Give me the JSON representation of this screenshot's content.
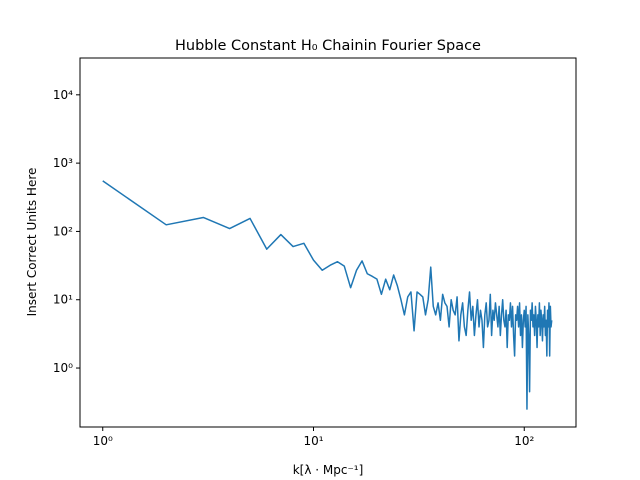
{
  "chart_data": {
    "type": "line",
    "title": "Hubble Constant H₀ Chainin Fourier Space",
    "xlabel": "k[λ · Mpc⁻¹]",
    "ylabel": "Insert Correct Units Here",
    "xscale": "log",
    "yscale": "log",
    "xlim": [
      0.78,
      176
    ],
    "ylim": [
      0.137,
      34600
    ],
    "xticks": [
      {
        "value": 1,
        "label": "10⁰"
      },
      {
        "value": 10,
        "label": "10¹"
      },
      {
        "value": 100,
        "label": "10²"
      }
    ],
    "yticks": [
      {
        "value": 1,
        "label": "10⁰"
      },
      {
        "value": 10,
        "label": "10¹"
      },
      {
        "value": 100,
        "label": "10²"
      },
      {
        "value": 1000,
        "label": "10³"
      },
      {
        "value": 10000,
        "label": "10⁴"
      }
    ],
    "x": [
      1,
      2,
      3,
      4,
      5,
      6,
      7,
      8,
      9,
      10,
      11,
      12,
      13,
      14,
      15,
      16,
      17,
      18,
      19,
      20,
      21,
      22,
      23,
      24,
      25,
      26,
      27,
      28,
      29,
      30,
      31,
      32,
      33,
      34,
      35,
      36,
      37,
      38,
      39,
      40,
      41,
      42,
      43,
      44,
      45,
      46,
      47,
      48,
      49,
      50,
      51,
      52,
      53,
      54,
      55,
      56,
      57,
      58,
      59,
      60,
      61,
      62,
      63,
      64,
      65,
      66,
      67,
      68,
      69,
      70,
      71,
      72,
      73,
      74,
      75,
      76,
      77,
      78,
      79,
      80,
      81,
      82,
      83,
      84,
      85,
      86,
      87,
      88,
      89,
      90,
      91,
      92,
      93,
      94,
      95,
      96,
      97,
      98,
      99,
      100,
      101,
      102,
      103,
      104,
      105,
      106,
      107,
      108,
      109,
      110,
      111,
      112,
      113,
      114,
      115,
      116,
      117,
      118,
      119,
      120,
      121,
      122,
      123,
      124,
      125,
      126,
      127,
      128,
      129,
      130,
      131,
      132,
      133,
      134,
      135
    ],
    "series": [
      {
        "color": "#1f77b4",
        "values": [
          550,
          125,
          160,
          110,
          155,
          55,
          90,
          60,
          67,
          38,
          27,
          32,
          36,
          31,
          15,
          27,
          37,
          24,
          22,
          20,
          12,
          20,
          14,
          23,
          16,
          10,
          6,
          11,
          13,
          3.5,
          13,
          12,
          11,
          6,
          10,
          30,
          8,
          6,
          9,
          5,
          12,
          9,
          8,
          4,
          10,
          7,
          6,
          11,
          2.5,
          6,
          9,
          4,
          3,
          7,
          13,
          5,
          8,
          3,
          6,
          10,
          4,
          7,
          5,
          2,
          6,
          9,
          4,
          5,
          12,
          3,
          7,
          5,
          9,
          6,
          4,
          8,
          3,
          6,
          10,
          5,
          4,
          7,
          2,
          6,
          5,
          9,
          4,
          8,
          3,
          1.5,
          6,
          5,
          8,
          4,
          9,
          3,
          6,
          2,
          5,
          7,
          4,
          8,
          0.25,
          6,
          3,
          0.45,
          7,
          5,
          9,
          4,
          6,
          3,
          8,
          5,
          2,
          6,
          4,
          9,
          3,
          7,
          5,
          2.5,
          6,
          4,
          8,
          3,
          5,
          1.5,
          7,
          4,
          9,
          1.5,
          8,
          4,
          5
        ]
      }
    ]
  }
}
